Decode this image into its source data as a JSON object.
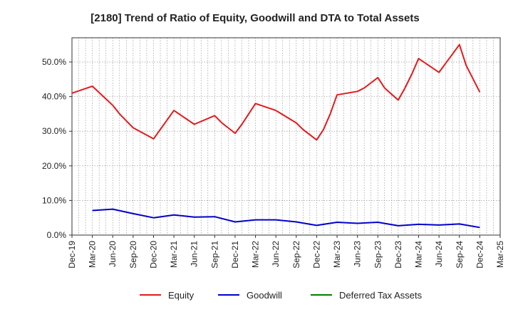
{
  "chart_data": {
    "type": "line",
    "title": "[2180]  Trend of Ratio of Equity, Goodwill and DTA to Total Assets",
    "xlabel": "",
    "ylabel": "",
    "x_ticks": [
      "Dec-19",
      "Mar-20",
      "Jun-20",
      "Sep-20",
      "Dec-20",
      "Mar-21",
      "Jun-21",
      "Sep-21",
      "Dec-21",
      "Mar-22",
      "Jun-22",
      "Sep-22",
      "Dec-22",
      "Mar-23",
      "Jun-23",
      "Sep-23",
      "Dec-23",
      "Mar-24",
      "Jun-24",
      "Sep-24",
      "Dec-24",
      "Mar-25"
    ],
    "y_ticks": [
      "0.0%",
      "10.0%",
      "20.0%",
      "30.0%",
      "40.0%",
      "50.0%"
    ],
    "y_tick_values": [
      0,
      10,
      20,
      30,
      40,
      50
    ],
    "ylim": [
      0,
      57
    ],
    "grid": true,
    "legend_position": "bottom",
    "series": [
      {
        "name": "Equity",
        "color": "#e31a1c",
        "x": [
          "Dec-19",
          "Mar-20",
          "Jun-20",
          "Jul-20",
          "Sep-20",
          "Dec-20",
          "Mar-21",
          "Jun-21",
          "Sep-21",
          "Oct-21",
          "Dec-21",
          "Jan-22",
          "Mar-22",
          "Jun-22",
          "Sep-22",
          "Oct-22",
          "Dec-22",
          "Jan-23",
          "Feb-23",
          "Mar-23",
          "Jun-23",
          "Jul-23",
          "Sep-23",
          "Oct-23",
          "Dec-23",
          "Jan-24",
          "Feb-24",
          "Mar-24",
          "Jun-24",
          "Sep-24",
          "Oct-24",
          "Dec-24"
        ],
        "values": [
          41.0,
          43.0,
          37.5,
          35.0,
          31.0,
          27.8,
          36.0,
          32.0,
          34.5,
          32.5,
          29.4,
          32.0,
          38.0,
          36.0,
          32.4,
          30.5,
          27.5,
          30.5,
          35.0,
          40.5,
          41.5,
          42.5,
          45.5,
          42.5,
          39.0,
          42.5,
          46.5,
          51.0,
          47.0,
          55.0,
          49.0,
          41.3
        ]
      },
      {
        "name": "Goodwill",
        "color": "#0000cc",
        "x": [
          "Mar-20",
          "Jun-20",
          "Sep-20",
          "Dec-20",
          "Mar-21",
          "Jun-21",
          "Sep-21",
          "Dec-21",
          "Mar-22",
          "Jun-22",
          "Sep-22",
          "Dec-22",
          "Mar-23",
          "Jun-23",
          "Sep-23",
          "Dec-23",
          "Mar-24",
          "Jun-24",
          "Sep-24",
          "Dec-24"
        ],
        "values": [
          7.1,
          7.5,
          6.2,
          5.0,
          5.8,
          5.2,
          5.3,
          3.8,
          4.4,
          4.4,
          3.8,
          2.8,
          3.7,
          3.4,
          3.7,
          2.7,
          3.1,
          2.9,
          3.2,
          2.2
        ]
      },
      {
        "name": "Deferred Tax Assets",
        "color": "#008000",
        "x": [],
        "values": []
      }
    ]
  }
}
